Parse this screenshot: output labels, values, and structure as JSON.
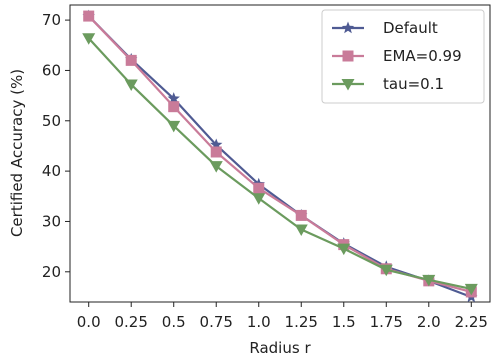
{
  "chart_data": {
    "type": "line",
    "xlabel": "Radius r",
    "ylabel": "Certified Accuracy (%)",
    "categories": [
      "0.0",
      "0.25",
      "0.5",
      "0.75",
      "1.0",
      "1.25",
      "1.5",
      "1.75",
      "2.0",
      "2.25"
    ],
    "x": [
      0.0,
      0.25,
      0.5,
      0.75,
      1.0,
      1.25,
      1.5,
      1.75,
      2.0,
      2.25
    ],
    "xlim": [
      -0.11,
      2.36
    ],
    "ylim": [
      14,
      73
    ],
    "yticks": [
      20,
      30,
      40,
      50,
      60,
      70
    ],
    "grid": false,
    "legend_position": "top-right",
    "series": [
      {
        "name": "Default",
        "color": "#4f5b93",
        "marker": "star",
        "values": [
          70.8,
          62.2,
          54.4,
          45.2,
          37.4,
          31.2,
          25.6,
          21.0,
          18.2,
          15.0
        ]
      },
      {
        "name": "EMA=0.99",
        "color": "#c97b99",
        "marker": "square",
        "values": [
          70.8,
          62.0,
          52.8,
          43.8,
          36.6,
          31.2,
          25.4,
          20.6,
          18.2,
          16.0
        ]
      },
      {
        "name": "tau=0.1",
        "color": "#6b9b5e",
        "marker": "triangle-down",
        "values": [
          66.4,
          57.2,
          49.0,
          41.0,
          34.6,
          28.4,
          24.6,
          20.4,
          18.4,
          16.6
        ]
      }
    ]
  }
}
